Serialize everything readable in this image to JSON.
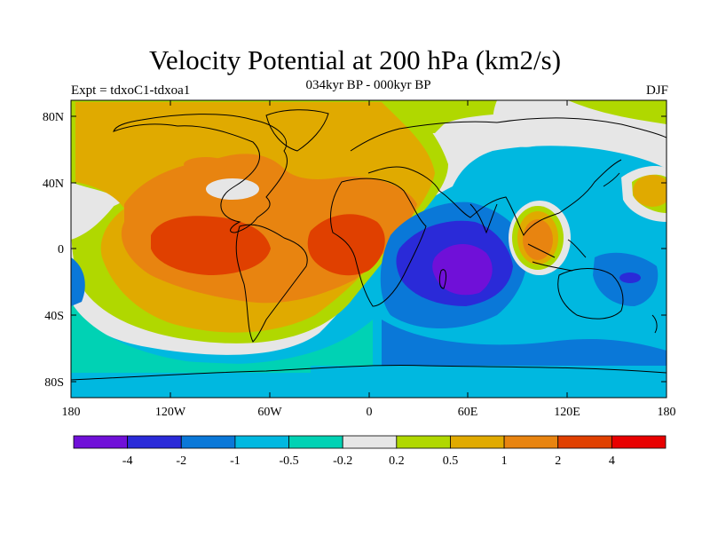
{
  "title": "Velocity Potential at 200 hPa (km2/s)",
  "subtitle": "034kyr BP - 000kyr BP",
  "left_string": "Expt = tdxoC1-tdxoa1",
  "right_string": "DJF",
  "map": {
    "projection": "cylindrical equidistant",
    "field": "velocity potential difference",
    "lon_range": [
      -180,
      180
    ],
    "lat_range": [
      -90,
      90
    ],
    "lon_ticks": [
      "180",
      "120W",
      "60W",
      "0",
      "60E",
      "120E",
      "180"
    ],
    "lat_ticks": [
      "80N",
      "40N",
      "0",
      "40S",
      "80S"
    ]
  },
  "legend": {
    "colors": [
      "#7010d8",
      "#2a2ad8",
      "#0a78d8",
      "#00b8e0",
      "#00d2b4",
      "#e6e6e6",
      "#b0d800",
      "#e0aa00",
      "#e88410",
      "#e04000",
      "#e80000"
    ],
    "labels": [
      "-4",
      "-2",
      "-1",
      "-0.5",
      "-0.2",
      "0.2",
      "0.5",
      "1",
      "2",
      "4"
    ]
  }
}
